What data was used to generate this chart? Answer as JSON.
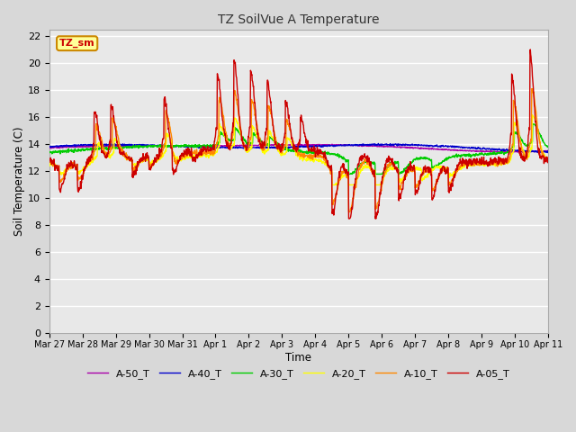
{
  "title": "TZ SoilVue A Temperature",
  "xlabel": "Time",
  "ylabel": "Soil Temperature (C)",
  "ylim": [
    0,
    22.5
  ],
  "yticks": [
    0,
    2,
    4,
    6,
    8,
    10,
    12,
    14,
    16,
    18,
    20,
    22
  ],
  "plot_bg_color": "#e8e8e8",
  "fig_bg_color": "#d8d8d8",
  "grid_color": "#ffffff",
  "series_colors": {
    "A-05_T": "#cc0000",
    "A-10_T": "#ff8800",
    "A-20_T": "#ffff00",
    "A-30_T": "#00cc00",
    "A-40_T": "#0000cc",
    "A-50_T": "#aa00aa"
  },
  "annotation_text": "TZ_sm",
  "annotation_bg": "#ffff99",
  "annotation_border": "#cc8800",
  "annotation_text_color": "#cc0000",
  "xtick_labels": [
    "Mar 27",
    "Mar 28",
    "Mar 29",
    "Mar 30",
    "Mar 31",
    "Apr 1",
    "Apr 2",
    "Apr 3",
    "Apr 4",
    "Apr 5",
    "Apr 6",
    "Apr 7",
    "Apr 8",
    "Apr 9",
    "Apr 10",
    "Apr 11"
  ]
}
